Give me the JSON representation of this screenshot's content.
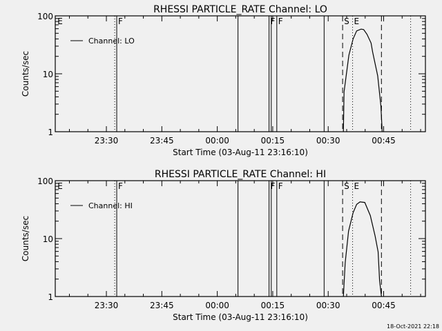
{
  "chart_data": [
    {
      "type": "line",
      "title": "RHESSI PARTICLE_RATE Channel: LO",
      "xlabel": "Start Time (03-Aug-11 23:16:10)",
      "ylabel": "Counts/sec",
      "yscale": "log",
      "ylim": [
        1,
        100
      ],
      "y_ticks": [
        {
          "v": 1,
          "label": "1"
        },
        {
          "v": 10,
          "label": "10"
        },
        {
          "v": 100,
          "label": "100"
        }
      ],
      "x_unit": "minutes relative to 00:00",
      "xlim": [
        -43.83,
        56.3
      ],
      "x_ticks": [
        {
          "v": -30,
          "label": "23:30"
        },
        {
          "v": -15,
          "label": "23:45"
        },
        {
          "v": 0,
          "label": "00:00"
        },
        {
          "v": 15,
          "label": "00:15"
        },
        {
          "v": 30,
          "label": "00:30"
        },
        {
          "v": 45,
          "label": "00:45"
        }
      ],
      "legend": {
        "label": "Channel: LO",
        "placement": "top-left"
      },
      "series": [
        {
          "name": "Channel: LO",
          "x": [
            34.1,
            34.3,
            35.6,
            36.75,
            37.7,
            38.9,
            39.6,
            40.5,
            41.6,
            42.0,
            43.4,
            44.25,
            44.6
          ],
          "y": [
            1,
            4.9,
            21,
            40,
            55,
            59,
            58,
            48,
            34,
            24,
            9.2,
            2.8,
            1
          ]
        }
      ],
      "markers": [
        {
          "x": -43.6,
          "style": "none",
          "label": "E"
        },
        {
          "x": -27.75,
          "style": "dotted",
          "label": ""
        },
        {
          "x": -27.2,
          "style": "solid",
          "label": "F"
        },
        {
          "x": 5.6,
          "style": "solid",
          "label": ""
        },
        {
          "x": 14.0,
          "style": "solid",
          "label": "F"
        },
        {
          "x": 14.6,
          "style": "solid",
          "label": ""
        },
        {
          "x": 16.1,
          "style": "solid",
          "label": "F"
        },
        {
          "x": 28.9,
          "style": "solid",
          "label": ""
        },
        {
          "x": 33.9,
          "style": "dashed",
          "label": "S"
        },
        {
          "x": 36.6,
          "style": "dotted",
          "label": "E"
        },
        {
          "x": 44.4,
          "style": "dashed",
          "label": ""
        },
        {
          "x": 52.3,
          "style": "dotted",
          "label": ""
        }
      ]
    },
    {
      "type": "line",
      "title": "RHESSI PARTICLE_RATE Channel: HI",
      "xlabel": "Start Time (03-Aug-11 23:16:10)",
      "ylabel": "Counts/sec",
      "yscale": "log",
      "ylim": [
        1,
        100
      ],
      "y_ticks": [
        {
          "v": 1,
          "label": "1"
        },
        {
          "v": 10,
          "label": "10"
        },
        {
          "v": 100,
          "label": "100"
        }
      ],
      "x_unit": "minutes relative to 00:00",
      "xlim": [
        -43.83,
        56.3
      ],
      "x_ticks": [
        {
          "v": -30,
          "label": "23:30"
        },
        {
          "v": -15,
          "label": "23:45"
        },
        {
          "v": 0,
          "label": "00:00"
        },
        {
          "v": 15,
          "label": "00:15"
        },
        {
          "v": 30,
          "label": "00:30"
        },
        {
          "v": 45,
          "label": "00:45"
        }
      ],
      "legend": {
        "label": "Channel: HI",
        "placement": "top-left"
      },
      "series": [
        {
          "name": "Channel: HI",
          "x": [
            34.1,
            34.6,
            35.5,
            36.75,
            37.7,
            38.6,
            39.9,
            41.4,
            42.7,
            43.5,
            43.9,
            44.4
          ],
          "y": [
            1,
            3.8,
            13.5,
            28,
            39,
            43,
            42,
            25,
            11,
            5.9,
            1.9,
            1
          ]
        }
      ],
      "markers": [
        {
          "x": -43.6,
          "style": "none",
          "label": "E"
        },
        {
          "x": -27.75,
          "style": "dotted",
          "label": ""
        },
        {
          "x": -27.2,
          "style": "solid",
          "label": "F"
        },
        {
          "x": 5.6,
          "style": "solid",
          "label": ""
        },
        {
          "x": 14.0,
          "style": "solid",
          "label": "F"
        },
        {
          "x": 14.6,
          "style": "solid",
          "label": ""
        },
        {
          "x": 16.1,
          "style": "solid",
          "label": "F"
        },
        {
          "x": 28.9,
          "style": "solid",
          "label": ""
        },
        {
          "x": 33.9,
          "style": "dashed",
          "label": "S"
        },
        {
          "x": 36.6,
          "style": "dotted",
          "label": "E"
        },
        {
          "x": 44.4,
          "style": "dashed",
          "label": ""
        },
        {
          "x": 52.3,
          "style": "dotted",
          "label": ""
        }
      ]
    }
  ],
  "footer": {
    "timestamp": "18-Oct-2021 22:18"
  }
}
